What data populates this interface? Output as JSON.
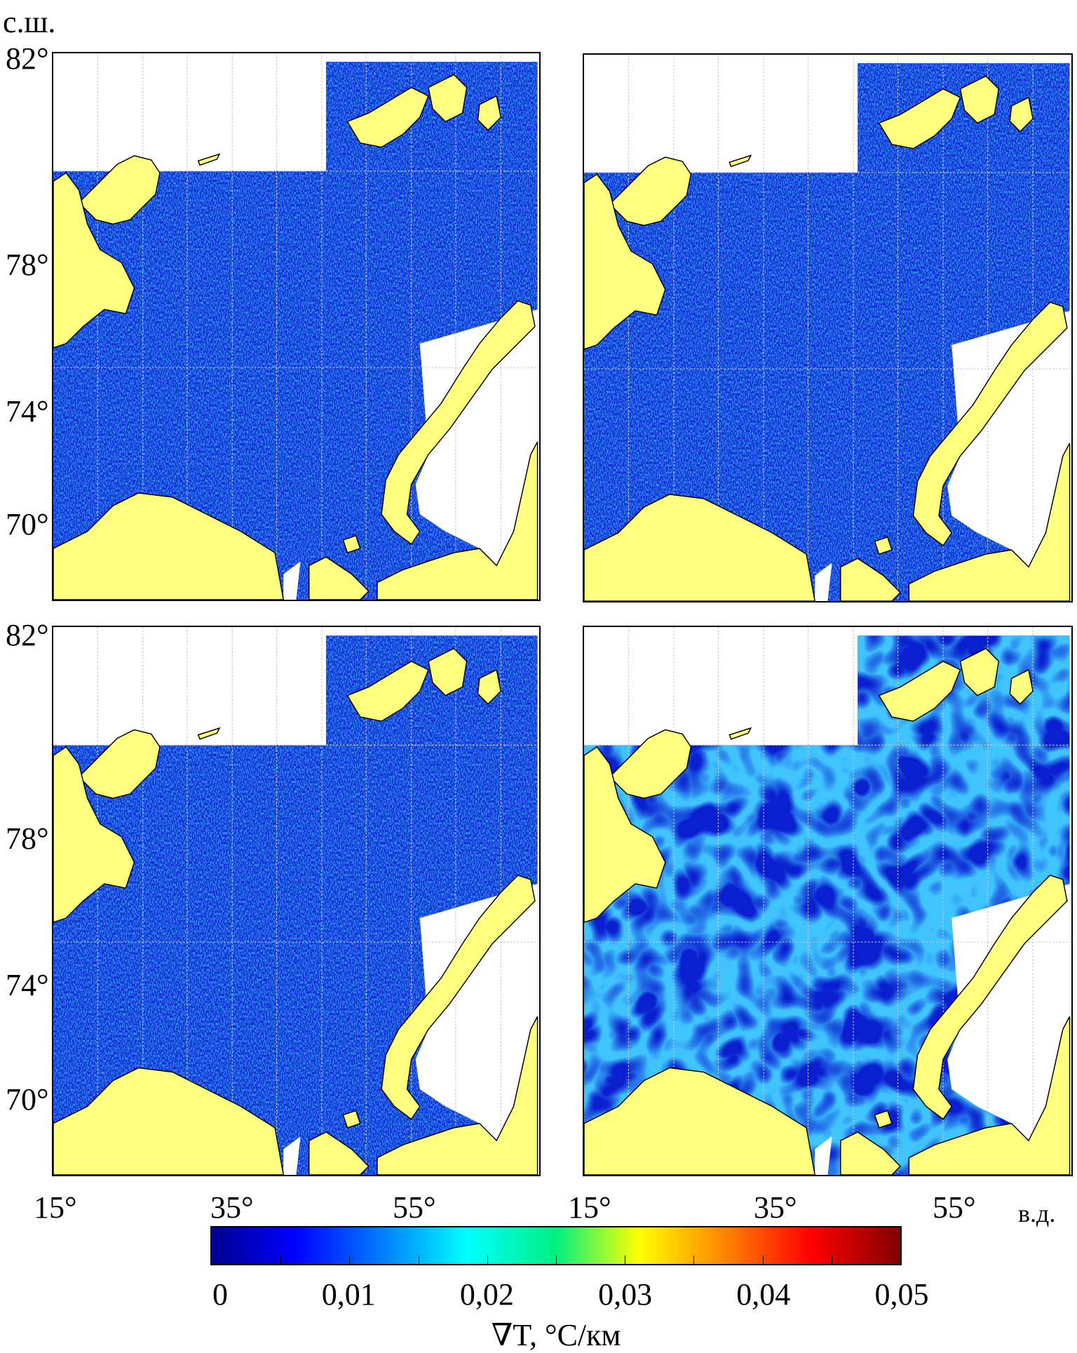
{
  "figure": {
    "lat_axis_label": "с.ш.",
    "lon_axis_label": "в.д.",
    "lat_ticks_top": [
      "82°",
      "78°",
      "74°",
      "70°"
    ],
    "lat_ticks_bottom": [
      "82°",
      "78°",
      "74°",
      "70°"
    ],
    "lon_ticks_left": [
      "15°",
      "35°",
      "55°"
    ],
    "lon_ticks_right": [
      "15°",
      "35°",
      "55°"
    ],
    "panels": [
      "top-left",
      "top-right",
      "bottom-left",
      "bottom-right"
    ]
  },
  "colorbar": {
    "title": "∇T, °C/км",
    "tick_labels": [
      "0",
      "0,01",
      "0,02",
      "0,03",
      "0,04",
      "0,05"
    ],
    "range": [
      0,
      0.05
    ],
    "colormap": "jet",
    "colors": [
      "#00008f",
      "#0000ff",
      "#00ffff",
      "#ffff00",
      "#ff0000",
      "#800000"
    ]
  },
  "chart_data": {
    "type": "heatmap",
    "title": "",
    "xlabel": "в.д.",
    "ylabel": "с.ш.",
    "x_ticks": [
      15,
      35,
      55
    ],
    "y_ticks": [
      70,
      74,
      78,
      82
    ],
    "color_range": [
      0,
      0.05
    ],
    "color_label": "∇T, °C/км"
  },
  "colors": {
    "land": "#ffff80",
    "ocean_low": "#0a1fd0",
    "grid": "#c8c8c8"
  }
}
